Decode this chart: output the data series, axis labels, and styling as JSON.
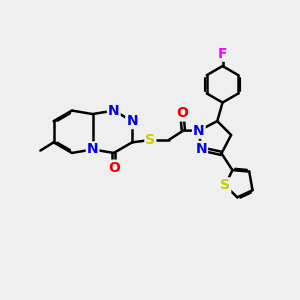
{
  "bg_color": "#efefef",
  "bond_color": "#000000",
  "bond_width": 1.8,
  "dbo": 0.055,
  "atom_colors": {
    "N": "#0000ee",
    "O": "#ee0000",
    "S": "#cccc00",
    "F": "#ff00ff",
    "C": "#000000"
  },
  "font_size": 10
}
